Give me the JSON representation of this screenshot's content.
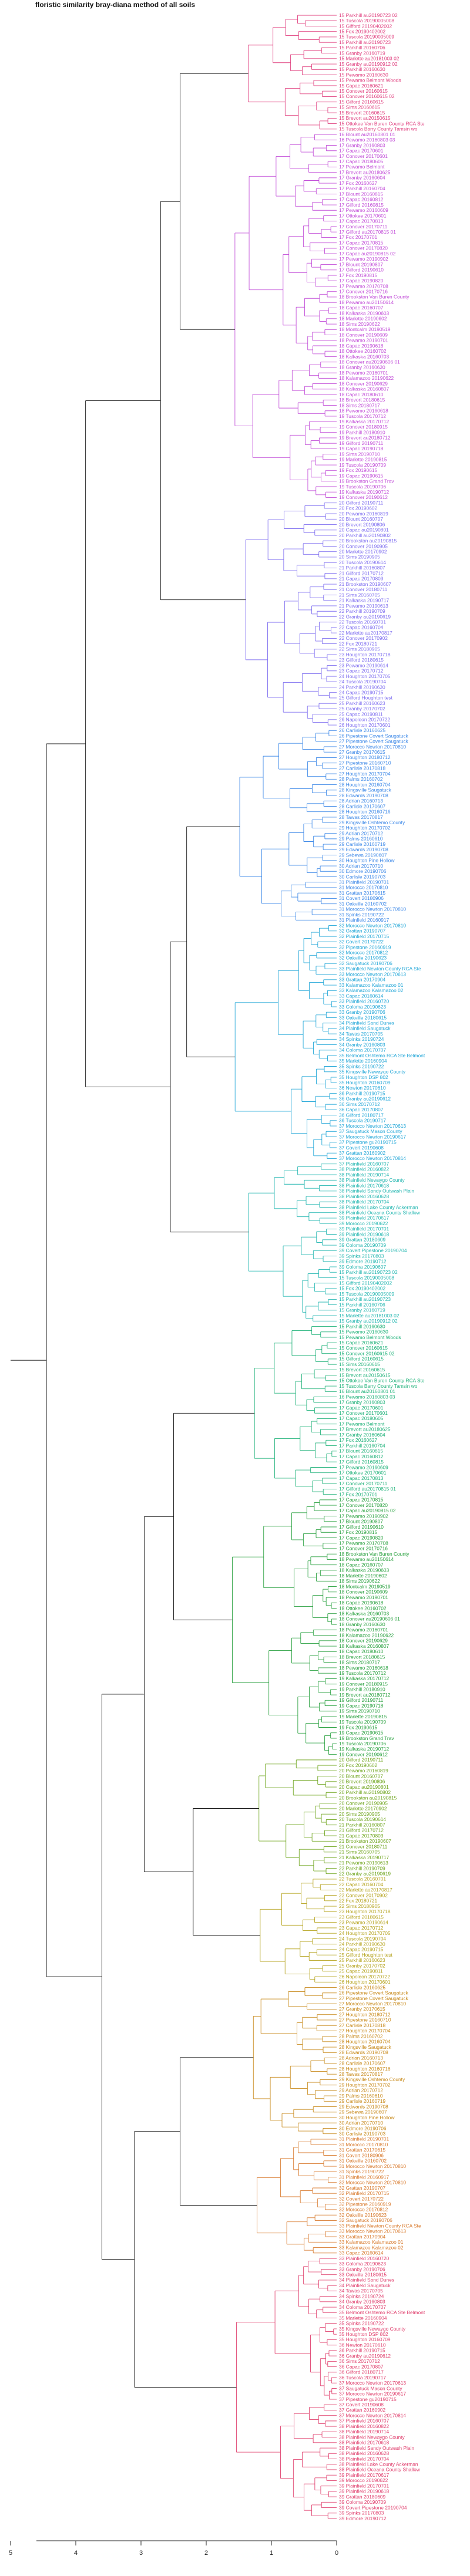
{
  "chart_data": {
    "type": "dendrogram",
    "title": "floristic similarity bray-diana method of all soils",
    "orientation": "leaves on the right, height axis at bottom increasing to the left",
    "xlabel": "",
    "ylabel": "",
    "xlim": [
      5,
      0
    ],
    "xticks": [
      5,
      4,
      3,
      2,
      1,
      0
    ],
    "leaf_count": 463,
    "colors": {
      "top_links": "#111111",
      "clusters": [
        "#e0407f",
        "#c24ed8",
        "#7f6ff0",
        "#3f8ae8",
        "#23a7d8",
        "#22b6b0",
        "#20b27a",
        "#2aa140",
        "#6fa51e",
        "#b5a31d",
        "#c88a1b",
        "#d87a2d",
        "#e0406e"
      ]
    },
    "top_structure": [
      {
        "name": "root",
        "height": 5.0
      },
      {
        "name": "upper-vs-lower",
        "height": 4.45
      },
      {
        "name": "upper-main",
        "height": 3.85
      },
      {
        "name": "lower-main",
        "height": 3.6
      },
      {
        "name": "green-yellow",
        "height": 2.95
      },
      {
        "name": "orange-red",
        "height": 3.1
      }
    ],
    "leaves_visible": [
      "15 Parkhill au20190723 02",
      "15 Tuscola 20190005008",
      "15 Gifford 20190402002",
      "15 Fox 20190402002",
      "15 Tuscola 20190005009",
      "15 Parkhill au20190723",
      "15 Parkhill 20160706",
      "15 Granby 20160719",
      "15 Marlette au20181003 02",
      "15 Granby au20190912 02",
      "15 Parkhill 20160630",
      "15 Pewamo 20160630",
      "15 Pewamo Belmont Woods",
      "15 Capac 20160621",
      "15 Conover 20160615",
      "15 Conover 20160615 02",
      "15 Gilford 20160615",
      "15 Sims 20160615",
      "15 Brevort 20160615",
      "15 Brevort au20150615",
      "15 Ottokee Van Buren County RCA Ste",
      "15 Tuscola Barry County Tamsin wo",
      "16 Blount au20160801 01",
      "16 Pewamo 20160803 03",
      "17 Granby 20160803",
      "17 Capac 20170601",
      "17 Conover 20170601",
      "17 Capac 20180605",
      "17 Pewamo Belmont",
      "17 Brevort au20180625",
      "17 Granby 20160604",
      "17 Fox 20160627",
      "17 Parkhill 20160704",
      "17 Blount 20160815",
      "17 Capac 20160812",
      "17 Gilford 20160815",
      "17 Pewamo 20160609",
      "17 Ottokee 20170601",
      "17 Capac 20170813",
      "17 Conover 20170711",
      "17 Gilford au20170815 01",
      "17 Fox 20170701",
      "17 Capac 20170815",
      "17 Conover 20170820",
      "17 Capac au20190815 02",
      "17 Pewamo 20190902",
      "17 Blount 20190807",
      "17 Gilford 20190610",
      "17 Fox 20190815",
      "17 Capac 20190820",
      "17 Pewamo 20170708",
      "17 Conover 20170716",
      "18 Brookston Van Buren County",
      "18 Pewamo au20150614",
      "18 Capac 20160707",
      "18 Kalkaska 20190603",
      "18 Marlette 20190602",
      "18 Sims 20190622",
      "18 Montcalm 20190519",
      "18 Conover 20190609",
      "18 Pewamo 20190701",
      "18 Capac 20190618",
      "18 Ottokee 20160702",
      "18 Kalkaska 20160703",
      "18 Conover au20190606 01",
      "18 Granby 20160630",
      "18 Pewamo 20160701",
      "18 Kalamazoo 20190622",
      "18 Conover 20190629",
      "18 Kalkaska 20160807",
      "18 Capac 20180610",
      "18 Brevort 20180615",
      "18 Sims 20180717",
      "18 Pewamo 20160618",
      "19 Tuscola 20170712",
      "19 Kalkaska 20170712",
      "19 Conover 20180915",
      "19 Parkhill 20180910",
      "19 Brevort au20180712",
      "19 Gilford 20190711",
      "19 Capac 20190718",
      "19 Sims 20190710",
      "19 Marlette 20190815",
      "19 Tuscola 20190709",
      "19 Fox 20190615",
      "19 Capac 20190615",
      "19 Brookston Grand Trav",
      "19 Tuscola 20190706",
      "19 Kalkaska 20190712",
      "19 Conover 20190612",
      "20 Gilford 20190711",
      "20 Fox 20190602",
      "20 Pewamo 20160819",
      "20 Blount 20160707",
      "20 Brevort 20190806",
      "20 Capac au20190801",
      "20 Parkhill au20190802",
      "20 Brookston au20190815",
      "20 Conover 20190905",
      "20 Marlette 20170902",
      "20 Sims 20190905",
      "20 Tuscola 20190614",
      "21 Parkhill 20160807",
      "21 Gilford 20170712",
      "21 Capac 20170803",
      "21 Brookston 20190607",
      "21 Conover 20180711",
      "21 Sims 20160705",
      "21 Kalkaska 20190717",
      "21 Pewamo 20190613",
      "22 Parkhill 20190709",
      "22 Granby au20190619",
      "22 Tuscola 20160701",
      "22 Capac 20160704",
      "22 Marlette au20170817",
      "22 Conover 20170902",
      "22 Fox 20180721",
      "22 Sims 20180905",
      "23 Houghton 20170718",
      "23 Gilford 20180615",
      "23 Pewamo 20190614",
      "23 Capac 20170712",
      "24 Houghton 20170705",
      "24 Tuscola 20190704",
      "24 Parkhill 20190630",
      "24 Capac 20190715",
      "25 Gilford Houghton test",
      "25 Parkhill 20160623",
      "25 Granby 20170702",
      "25 Capac 20190811",
      "26 Napoleon 20170722",
      "26 Houghton 20170601",
      "26 Carlisle 20160625",
      "26 Pipestone Covert Saugatuck",
      "27 Pipestone Covert Saugatuck",
      "27 Morocco Newton 20170810",
      "27 Granby 20170615",
      "27 Houghton 20180712",
      "27 Pipestone 20160710",
      "27 Carlisle 20170818",
      "27 Houghton 20170704",
      "28 Palms 20160702",
      "28 Houghton 20160704",
      "28 Kingsville Saugatuck",
      "28 Edwards 20190708",
      "28 Adrian 20160713",
      "28 Carlisle 20170607",
      "28 Houghton 20160716",
      "28 Tawas 20170817",
      "29 Kingsville Oshtemo County",
      "29 Houghton 20170702",
      "29 Adrian 20170712",
      "29 Palms 20160610",
      "29 Carlisle 20160719",
      "29 Edwards 20190708",
      "29 Sebewa 20190607",
      "30 Houghton Pine Hollow",
      "30 Adrian 20170710",
      "30 Edmore 20190706",
      "30 Carlisle 20190703",
      "31 Plainfield 20190701",
      "31 Morocco 20170810",
      "31 Grattan 20170615",
      "31 Covert 20180906",
      "31 Oakville 20160702",
      "31 Morocco Newton 20170810",
      "31 Spinks 20190722",
      "31 Plainfield 20160917",
      "32 Morocco Newton 20170810",
      "32 Grattan 20190707",
      "32 Plainfield 20170715",
      "32 Covert 20170722",
      "32 Pipestone 20160919",
      "32 Morocco 20170812",
      "32 Oakville 20190623",
      "32 Saugatuck 20190706",
      "33 Plainfield Newton County RCA Ste",
      "33 Morocco Newton 20170613",
      "33 Grattan 20170904",
      "33 Kalamazoo Kalamazoo 01",
      "33 Kalamazoo Kalamazoo 02",
      "33 Capac 20160614",
      "33 Plainfield 20160720",
      "33 Coloma 20190623",
      "33 Granby 20190706",
      "33 Oakville 20180615",
      "34 Plainfield Sand Dunes",
      "34 Plainfield Saugatuck",
      "34 Tawas 20170705",
      "34 Spinks 20190724",
      "34 Granby 20160803",
      "34 Coloma 20170707",
      "35 Belmont Oshtemo RCA Ste Belmont",
      "35 Marlette 20160904",
      "35 Spinks 20190722",
      "35 Kingsville Newaygo County",
      "35 Houghton DSP 802",
      "35 Houghton 20160709",
      "36 Newton 20170610",
      "36 Parkhill 20190715",
      "36 Granby au20190612",
      "36 Sims 20170712",
      "36 Capac 20170807",
      "36 Gilford 20180717",
      "36 Tuscola 20190717",
      "37 Morocco Newton 20170613",
      "37 Saugatuck Mason County",
      "37 Morocco Newton 20190617",
      "37 Pipestone gu20190715",
      "37 Covert 20190608",
      "37 Grattan 20160902",
      "37 Morocco Newton 20170814",
      "37 Plainfield 20160707",
      "38 Plainfield 20160822",
      "38 Plainfield 20190714",
      "38 Plainfield Newaygo County",
      "38 Plainfield 20170618",
      "38 Plainfield Sandy Outwash Plain",
      "38 Plainfield 20160628",
      "38 Plainfield 20170704",
      "38 Plainfield Lake County Ackerman",
      "38 Plainfield Oceana County Shallow",
      "39 Plainfield 20170617",
      "39 Morocco 20190622",
      "39 Plainfield 20170701",
      "39 Plainfield 20190618",
      "39 Grattan 20180609",
      "39 Coloma 20190709",
      "39 Covert Pipestone 20190704",
      "39 Spinks 20170803",
      "39 Edmore 20190712",
      "39 Coloma 20190607"
    ]
  }
}
